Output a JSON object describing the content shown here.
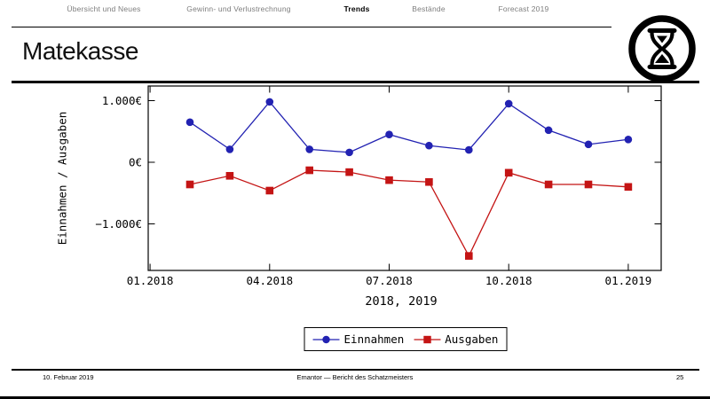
{
  "nav": {
    "items": [
      {
        "label": "Übersicht und Neues",
        "active": false
      },
      {
        "label": "Gewinn- und Verlustrechnung",
        "active": false
      },
      {
        "label": "Trends",
        "active": true
      },
      {
        "label": "Bestände",
        "active": false
      },
      {
        "label": "Forecast 2019",
        "active": false
      }
    ]
  },
  "title": "Matekasse",
  "logo_icon": "hourglass-in-circle",
  "chart_data": {
    "type": "line",
    "title": "",
    "xlabel": "2018, 2019",
    "ylabel": "Einnahmen / Ausgaben",
    "categories": [
      "02.2018",
      "03.2018",
      "04.2018",
      "05.2018",
      "06.2018",
      "07.2018",
      "08.2018",
      "09.2018",
      "10.2018",
      "11.2018",
      "12.2018",
      "01.2019"
    ],
    "x_tick_labels": [
      "01.2018",
      "04.2018",
      "07.2018",
      "10.2018",
      "01.2019"
    ],
    "x_tick_positions": [
      -1,
      2,
      5,
      8,
      11
    ],
    "y_ticks": [
      1000,
      0,
      -1000
    ],
    "y_tick_labels": [
      "1.000€",
      "0€",
      "−1.000€"
    ],
    "ylim": [
      -1800,
      1250
    ],
    "grid": false,
    "legend_position": "below",
    "series": [
      {
        "name": "Einnahmen",
        "color": "#2222b2",
        "marker": "circle",
        "values": [
          650,
          210,
          980,
          210,
          160,
          450,
          270,
          200,
          950,
          520,
          290,
          370
        ]
      },
      {
        "name": "Ausgaben",
        "color": "#c41414",
        "marker": "square",
        "values": [
          -360,
          -220,
          -460,
          -130,
          -160,
          -290,
          -320,
          -1520,
          -170,
          -360,
          -360,
          -400
        ]
      }
    ]
  },
  "footer": {
    "date": "10. Februar 2019",
    "center": "Emantor — Bericht des Schatzmeisters",
    "page": "25"
  }
}
